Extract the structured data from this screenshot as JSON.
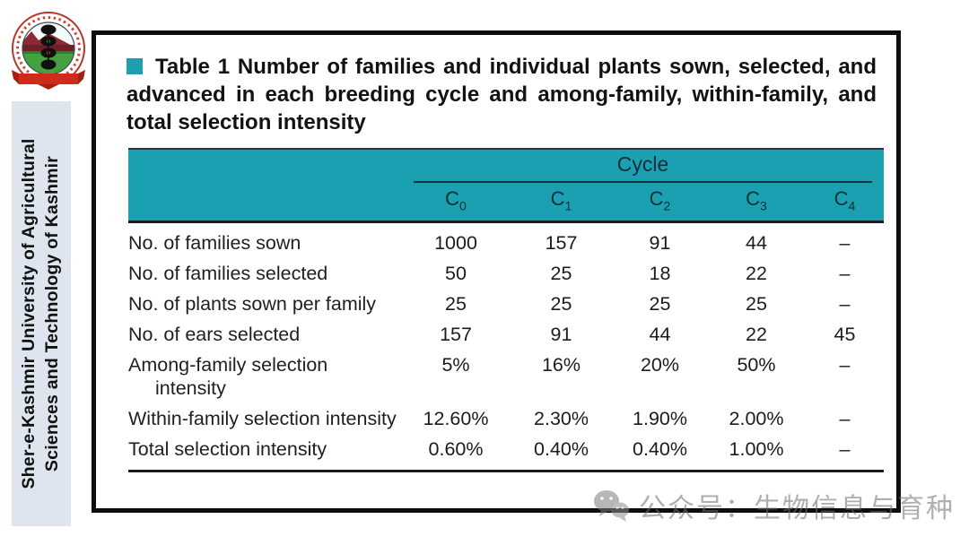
{
  "sidebar": {
    "line1": "Sher-e-Kashmir University of Agricultural",
    "line2": "Sciences and Technology of Kashmir"
  },
  "title": {
    "text": "Table 1 Number of families and individual plants sown, selected, and advanced in each breeding cycle and among-family, within-family, and total selection intensity"
  },
  "table": {
    "group_header": "Cycle",
    "columns": [
      {
        "base": "C",
        "sub": "0"
      },
      {
        "base": "C",
        "sub": "1"
      },
      {
        "base": "C",
        "sub": "2"
      },
      {
        "base": "C",
        "sub": "3"
      },
      {
        "base": "C",
        "sub": "4"
      }
    ],
    "rows": [
      {
        "label": "No. of families sown",
        "values": [
          "1000",
          "157",
          "91",
          "44",
          "–"
        ]
      },
      {
        "label": "No. of families selected",
        "values": [
          "50",
          "25",
          "18",
          "22",
          "–"
        ]
      },
      {
        "label": "No. of plants sown per family",
        "values": [
          "25",
          "25",
          "25",
          "25",
          "–"
        ]
      },
      {
        "label": "No. of ears selected",
        "values": [
          "157",
          "91",
          "44",
          "22",
          "45"
        ]
      },
      {
        "label": "Among-family selection intensity",
        "values": [
          "5%",
          "16%",
          "20%",
          "50%",
          "–"
        ]
      },
      {
        "label": "Within-family selection intensity",
        "values": [
          "12.60%",
          "2.30%",
          "1.90%",
          "2.00%",
          "–"
        ]
      },
      {
        "label": "Total selection intensity",
        "values": [
          "0.60%",
          "0.40%",
          "0.40%",
          "1.00%",
          "–"
        ]
      }
    ]
  },
  "watermark": {
    "text": "公众号：生物信息与育种"
  },
  "colors": {
    "accent_teal": "#1AA0B0",
    "header_text": "#0E2F38",
    "frame_border": "#0D0D0D",
    "sidebar_bg": "#DEE5EF",
    "watermark_gray": "#8A8A8A"
  }
}
